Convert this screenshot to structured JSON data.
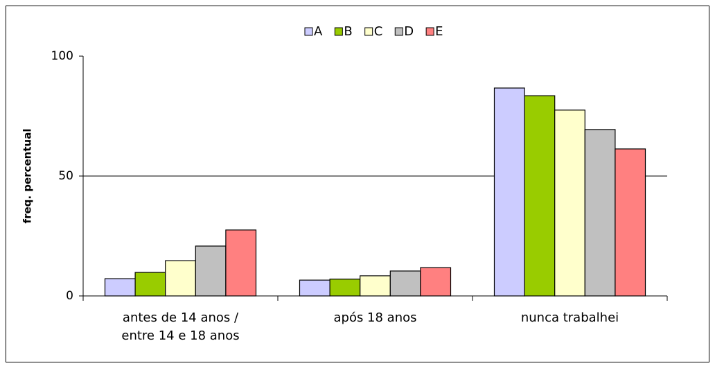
{
  "chart_data": {
    "type": "bar",
    "y_label": "freq. percentual",
    "categories": [
      "antes de 14 anos / entre 14 e 18 anos",
      "após 18 anos",
      "nunca trabalhei"
    ],
    "series": [
      {
        "name": "A",
        "color": "#ccccff",
        "values": [
          7.2,
          6.6,
          86.7
        ]
      },
      {
        "name": "B",
        "color": "#99cc00",
        "values": [
          9.8,
          7,
          83.5
        ]
      },
      {
        "name": "C",
        "color": "#ffffcc",
        "values": [
          14.7,
          8.4,
          77.5
        ]
      },
      {
        "name": "D",
        "color": "#c0c0c0",
        "values": [
          20.8,
          10.4,
          69.4
        ]
      },
      {
        "name": "E",
        "color": "#ff8080",
        "values": [
          27.5,
          11.8,
          61.3
        ]
      }
    ],
    "ylim": [
      0,
      100
    ],
    "yticks": [
      0,
      50,
      100
    ],
    "grid": true,
    "legend": "top"
  }
}
